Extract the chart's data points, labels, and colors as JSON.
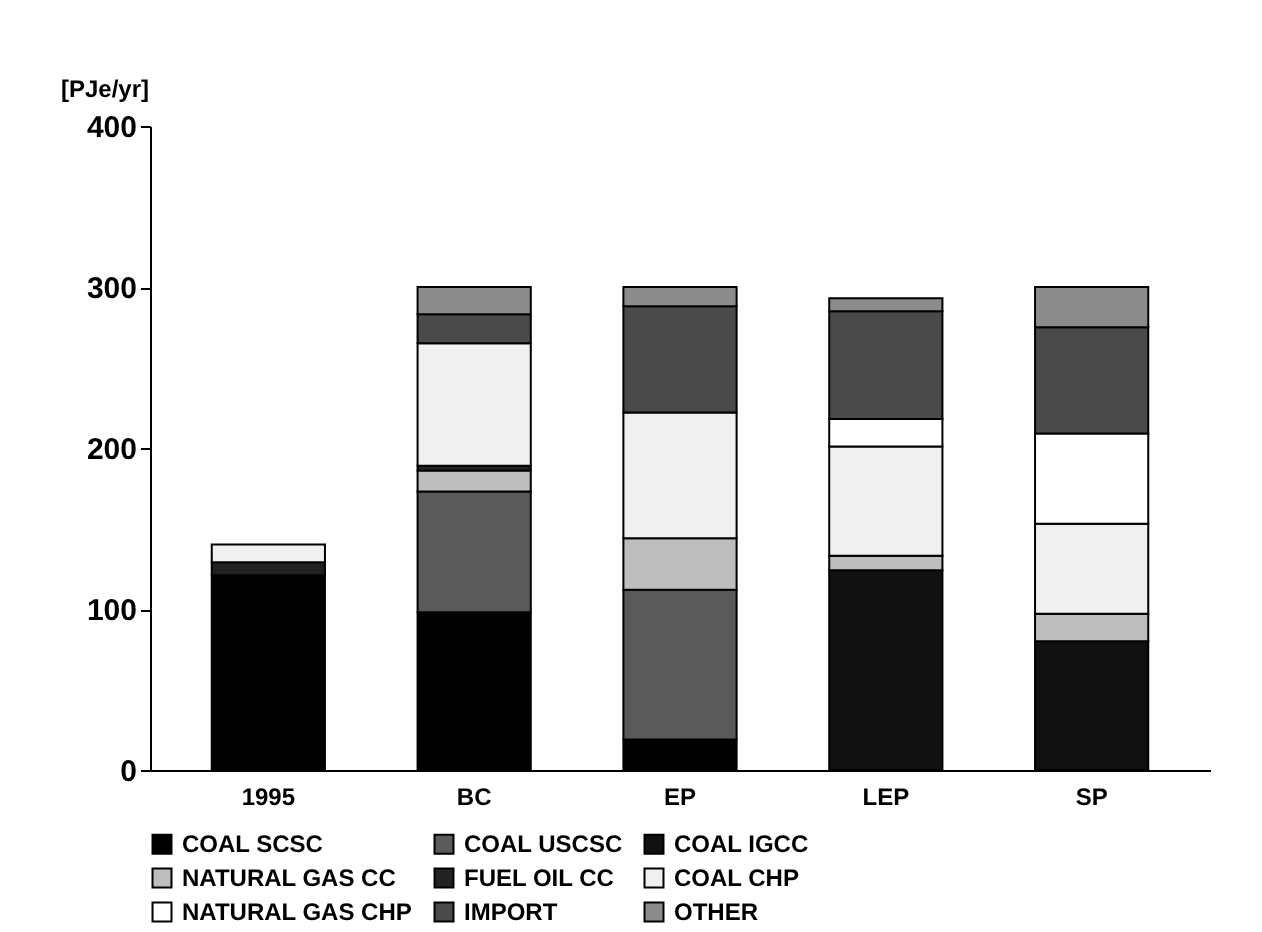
{
  "chart_data": {
    "type": "bar",
    "stacked": true,
    "ylabel": "[PJe/yr]",
    "categories": [
      "1995",
      "BC",
      "EP",
      "LEP",
      "SP"
    ],
    "ylim": [
      0,
      400
    ],
    "yticks": [
      0,
      100,
      200,
      300,
      400
    ],
    "grid": false,
    "legend": "bottom",
    "series": [
      {
        "name": "COAL SCSC",
        "color": "#000000",
        "values": [
          121,
          98,
          19,
          null,
          null
        ]
      },
      {
        "name": "COAL USCSC",
        "color": "#5a5a5a",
        "values": [
          null,
          75,
          93,
          null,
          null
        ]
      },
      {
        "name": "COAL IGCC",
        "color": "#111111",
        "values": [
          null,
          null,
          null,
          124,
          80
        ]
      },
      {
        "name": "NATURAL GAS CC",
        "color": "#bdbdbd",
        "values": [
          null,
          13,
          32,
          9,
          17
        ]
      },
      {
        "name": "FUEL OIL CC",
        "color": "#222222",
        "values": [
          8,
          3,
          null,
          null,
          null
        ]
      },
      {
        "name": "COAL CHP",
        "color": "#f0f0f0",
        "values": [
          11,
          76,
          78,
          68,
          56
        ]
      },
      {
        "name": "NATURAL GAS CHP",
        "color": "#ffffff",
        "values": [
          null,
          null,
          null,
          17,
          56
        ]
      },
      {
        "name": "IMPORT",
        "color": "#4a4a4a",
        "values": [
          null,
          18,
          66,
          67,
          66
        ]
      },
      {
        "name": "OTHER",
        "color": "#8c8c8c",
        "values": [
          null,
          17,
          12,
          8,
          25
        ]
      }
    ]
  }
}
